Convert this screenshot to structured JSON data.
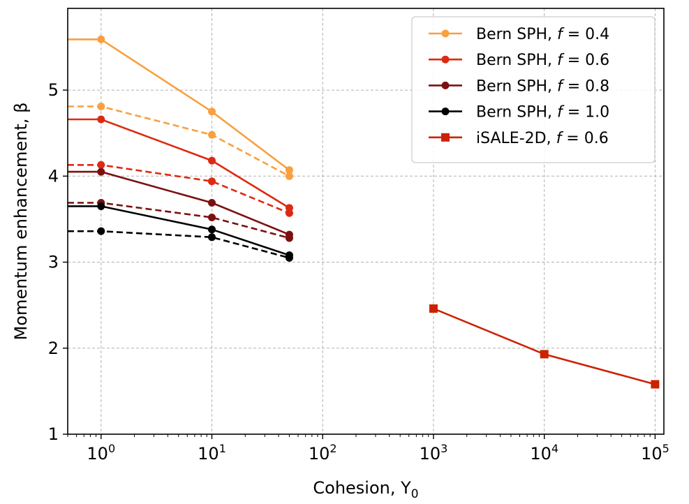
{
  "chart_data": {
    "type": "line",
    "xlabel": "Cohesion, Y",
    "xlabel_sub": "0",
    "ylabel": "Momentum enhancement, β",
    "x_scale": "log",
    "xlim": [
      0.5,
      120000
    ],
    "ylim": [
      1,
      5.95
    ],
    "y_ticks": [
      "1",
      "2",
      "3",
      "4",
      "5"
    ],
    "y_tick_values": [
      1,
      2,
      3,
      4,
      5
    ],
    "x_ticks": [
      {
        "base": "10",
        "exp": "0",
        "value": 1
      },
      {
        "base": "10",
        "exp": "1",
        "value": 10
      },
      {
        "base": "10",
        "exp": "2",
        "value": 100
      },
      {
        "base": "10",
        "exp": "3",
        "value": 1000
      },
      {
        "base": "10",
        "exp": "4",
        "value": 10000
      },
      {
        "base": "10",
        "exp": "5",
        "value": 100000
      }
    ],
    "grid": true,
    "legend_position": "top-right",
    "legend": [
      {
        "label": "Bern SPH, f = 0.4",
        "prefix": "Bern SPH, ",
        "var": "f",
        "suffix": " = 0.4",
        "color": "#f8a040",
        "marker": "circle"
      },
      {
        "label": "Bern SPH, f = 0.6",
        "prefix": "Bern SPH, ",
        "var": "f",
        "suffix": " = 0.6",
        "color": "#dd2a12",
        "marker": "circle"
      },
      {
        "label": "Bern SPH, f = 0.8",
        "prefix": "Bern SPH, ",
        "var": "f",
        "suffix": " = 0.8",
        "color": "#7c1010",
        "marker": "circle"
      },
      {
        "label": "Bern SPH, f = 1.0",
        "prefix": "Bern SPH, ",
        "var": "f",
        "suffix": " = 1.0",
        "color": "#000000",
        "marker": "circle"
      },
      {
        "label": "iSALE-2D, f = 0.6",
        "prefix": "iSALE-2D, ",
        "var": "f",
        "suffix": " = 0.6",
        "color": "#cc2200",
        "marker": "square"
      }
    ],
    "series": [
      {
        "legend_index": 0,
        "color": "#f8a040",
        "dash": false,
        "marker": "circle",
        "x": [
          0.5,
          1,
          10,
          50
        ],
        "y": [
          5.59,
          5.59,
          4.75,
          4.07
        ],
        "marked_from": 1
      },
      {
        "legend_index": null,
        "color": "#f8a040",
        "dash": true,
        "marker": "circle",
        "x": [
          0.5,
          1,
          10,
          50
        ],
        "y": [
          4.81,
          4.81,
          4.48,
          4.0
        ],
        "marked_from": 1
      },
      {
        "legend_index": 1,
        "color": "#dd2a12",
        "dash": false,
        "marker": "circle",
        "x": [
          0.5,
          1,
          10,
          50
        ],
        "y": [
          4.66,
          4.66,
          4.18,
          3.63
        ],
        "marked_from": 1
      },
      {
        "legend_index": null,
        "color": "#dd2a12",
        "dash": true,
        "marker": "circle",
        "x": [
          0.5,
          1,
          10,
          50
        ],
        "y": [
          4.13,
          4.13,
          3.94,
          3.57
        ],
        "marked_from": 1
      },
      {
        "legend_index": 2,
        "color": "#7c1010",
        "dash": false,
        "marker": "circle",
        "x": [
          0.5,
          1,
          10,
          50
        ],
        "y": [
          4.05,
          4.05,
          3.69,
          3.32
        ],
        "marked_from": 1
      },
      {
        "legend_index": null,
        "color": "#7c1010",
        "dash": true,
        "marker": "circle",
        "x": [
          0.5,
          1,
          10,
          50
        ],
        "y": [
          3.69,
          3.69,
          3.52,
          3.28
        ],
        "marked_from": 1
      },
      {
        "legend_index": 3,
        "color": "#000000",
        "dash": false,
        "marker": "circle",
        "x": [
          0.5,
          1,
          10,
          50
        ],
        "y": [
          3.65,
          3.65,
          3.38,
          3.08
        ],
        "marked_from": 1
      },
      {
        "legend_index": null,
        "color": "#000000",
        "dash": true,
        "marker": "circle",
        "x": [
          0.5,
          1,
          10,
          50
        ],
        "y": [
          3.36,
          3.36,
          3.29,
          3.05
        ],
        "marked_from": 1
      },
      {
        "legend_index": 4,
        "color": "#cc2200",
        "dash": false,
        "marker": "square",
        "x": [
          1000,
          10000,
          100000
        ],
        "y": [
          2.46,
          1.93,
          1.58
        ],
        "marked_from": 0
      }
    ]
  }
}
